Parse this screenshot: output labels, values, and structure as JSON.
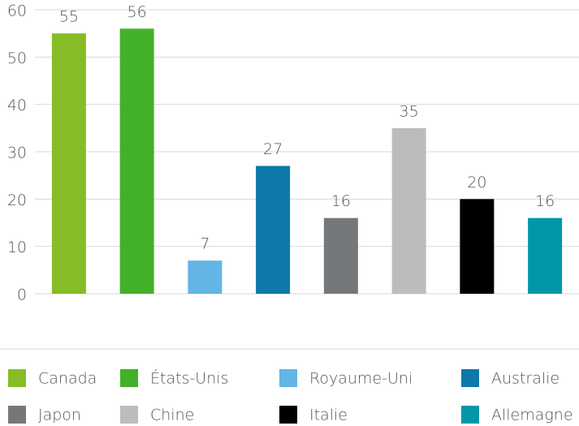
{
  "chart_data": {
    "type": "bar",
    "categories": [
      "Canada",
      "États-Unis",
      "Royaume-Uni",
      "Australie",
      "Japon",
      "Chine",
      "Italie",
      "Allemagne"
    ],
    "values": [
      55,
      56,
      7,
      27,
      16,
      35,
      20,
      16
    ],
    "colors": [
      "#86bc25",
      "#43b02a",
      "#62b5e5",
      "#0d78aa",
      "#75787b",
      "#bbbcbc",
      "#000000",
      "#0097a9"
    ],
    "ylim": [
      0,
      60
    ],
    "yticks": [
      0,
      10,
      20,
      30,
      40,
      50,
      60
    ],
    "grid": true,
    "legend": "bottom"
  }
}
